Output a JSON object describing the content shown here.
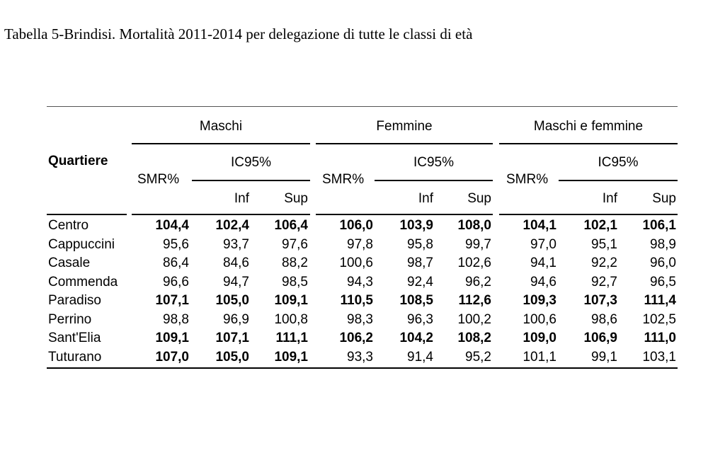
{
  "caption": "Tabella 5-Brindisi. Mortalità 2011-2014 per delegazione di tutte le classi di età",
  "table": {
    "row_header": "Quartiere",
    "groups": [
      "Maschi",
      "Femmine",
      "Maschi e femmine"
    ],
    "smr_label": "SMR%",
    "ci_label": "IC95%",
    "inf_label": "Inf",
    "sup_label": "Sup",
    "rows": [
      {
        "name": "Centro",
        "values": [
          "104,4",
          "102,4",
          "106,4",
          "106,0",
          "103,9",
          "108,0",
          "104,1",
          "102,1",
          "106,1"
        ],
        "bold": [
          true,
          true,
          true,
          true,
          true,
          true,
          true,
          true,
          true
        ]
      },
      {
        "name": "Cappuccini",
        "values": [
          "95,6",
          "93,7",
          "97,6",
          "97,8",
          "95,8",
          "99,7",
          "97,0",
          "95,1",
          "98,9"
        ],
        "bold": [
          false,
          false,
          false,
          false,
          false,
          false,
          false,
          false,
          false
        ]
      },
      {
        "name": "Casale",
        "values": [
          "86,4",
          "84,6",
          "88,2",
          "100,6",
          "98,7",
          "102,6",
          "94,1",
          "92,2",
          "96,0"
        ],
        "bold": [
          false,
          false,
          false,
          false,
          false,
          false,
          false,
          false,
          false
        ]
      },
      {
        "name": "Commenda",
        "values": [
          "96,6",
          "94,7",
          "98,5",
          "94,3",
          "92,4",
          "96,2",
          "94,6",
          "92,7",
          "96,5"
        ],
        "bold": [
          false,
          false,
          false,
          false,
          false,
          false,
          false,
          false,
          false
        ]
      },
      {
        "name": "Paradiso",
        "values": [
          "107,1",
          "105,0",
          "109,1",
          "110,5",
          "108,5",
          "112,6",
          "109,3",
          "107,3",
          "111,4"
        ],
        "bold": [
          true,
          true,
          true,
          true,
          true,
          true,
          true,
          true,
          true
        ]
      },
      {
        "name": "Perrino",
        "values": [
          "98,8",
          "96,9",
          "100,8",
          "98,3",
          "96,3",
          "100,2",
          "100,6",
          "98,6",
          "102,5"
        ],
        "bold": [
          false,
          false,
          false,
          false,
          false,
          false,
          false,
          false,
          false
        ]
      },
      {
        "name": "Sant'Elia",
        "values": [
          "109,1",
          "107,1",
          "111,1",
          "106,2",
          "104,2",
          "108,2",
          "109,0",
          "106,9",
          "111,0"
        ],
        "bold": [
          true,
          true,
          true,
          true,
          true,
          true,
          true,
          true,
          true
        ]
      },
      {
        "name": "Tuturano",
        "values": [
          "107,0",
          "105,0",
          "109,1",
          "93,3",
          "91,4",
          "95,2",
          "101,1",
          "99,1",
          "103,1"
        ],
        "bold": [
          true,
          true,
          true,
          false,
          false,
          false,
          false,
          false,
          false
        ]
      }
    ]
  }
}
